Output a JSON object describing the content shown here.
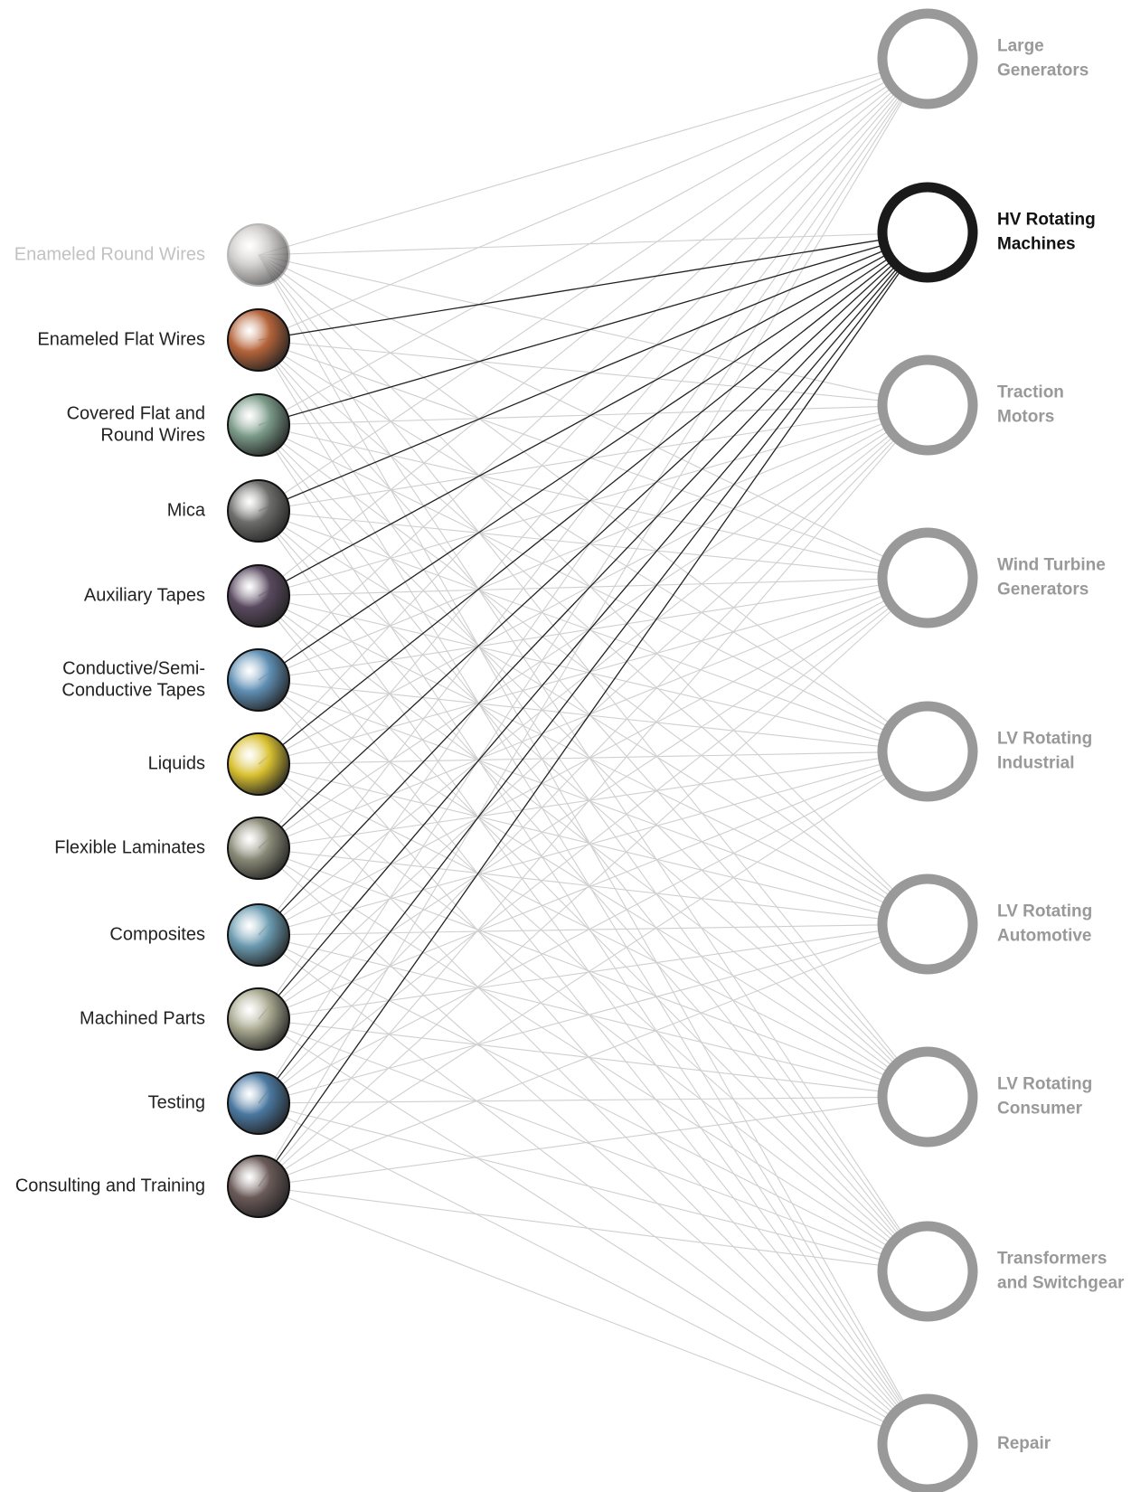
{
  "sources": [
    {
      "label": [
        "Enameled Round Wires"
      ],
      "color": "#b8b4b2"
    },
    {
      "label": [
        "Enameled Flat Wires"
      ],
      "color": "#b5643a"
    },
    {
      "label": [
        "Covered Flat and",
        "Round Wires"
      ],
      "color": "#7a9a88"
    },
    {
      "label": [
        "Mica"
      ],
      "color": "#6d6d6b"
    },
    {
      "label": [
        "Auxiliary Tapes"
      ],
      "color": "#5a4a60"
    },
    {
      "label": [
        "Conductive/Semi-",
        "Conductive Tapes"
      ],
      "color": "#5f8fb4"
    },
    {
      "label": [
        "Liquids"
      ],
      "color": "#d8c030"
    },
    {
      "label": [
        "Flexible Laminates"
      ],
      "color": "#8a8a78"
    },
    {
      "label": [
        "Composites"
      ],
      "color": "#6a9ab0"
    },
    {
      "label": [
        "Machined Parts"
      ],
      "color": "#a8a890"
    },
    {
      "label": [
        "Testing"
      ],
      "color": "#4a78a0"
    },
    {
      "label": [
        "Consulting and Training"
      ],
      "color": "#6a5a58"
    }
  ],
  "markets": [
    {
      "label": [
        "Large",
        "Generators"
      ]
    },
    {
      "label": [
        "HV Rotating",
        "Machines"
      ]
    },
    {
      "label": [
        "Traction",
        "Motors"
      ]
    },
    {
      "label": [
        "Wind Turbine",
        "Generators"
      ]
    },
    {
      "label": [
        "LV Rotating",
        "Industrial"
      ]
    },
    {
      "label": [
        "LV Rotating",
        "Automotive"
      ]
    },
    {
      "label": [
        "LV Rotating",
        "Consumer"
      ]
    },
    {
      "label": [
        "Transformers",
        "and Switchgear"
      ]
    },
    {
      "label": [
        "Repair"
      ]
    }
  ]
}
